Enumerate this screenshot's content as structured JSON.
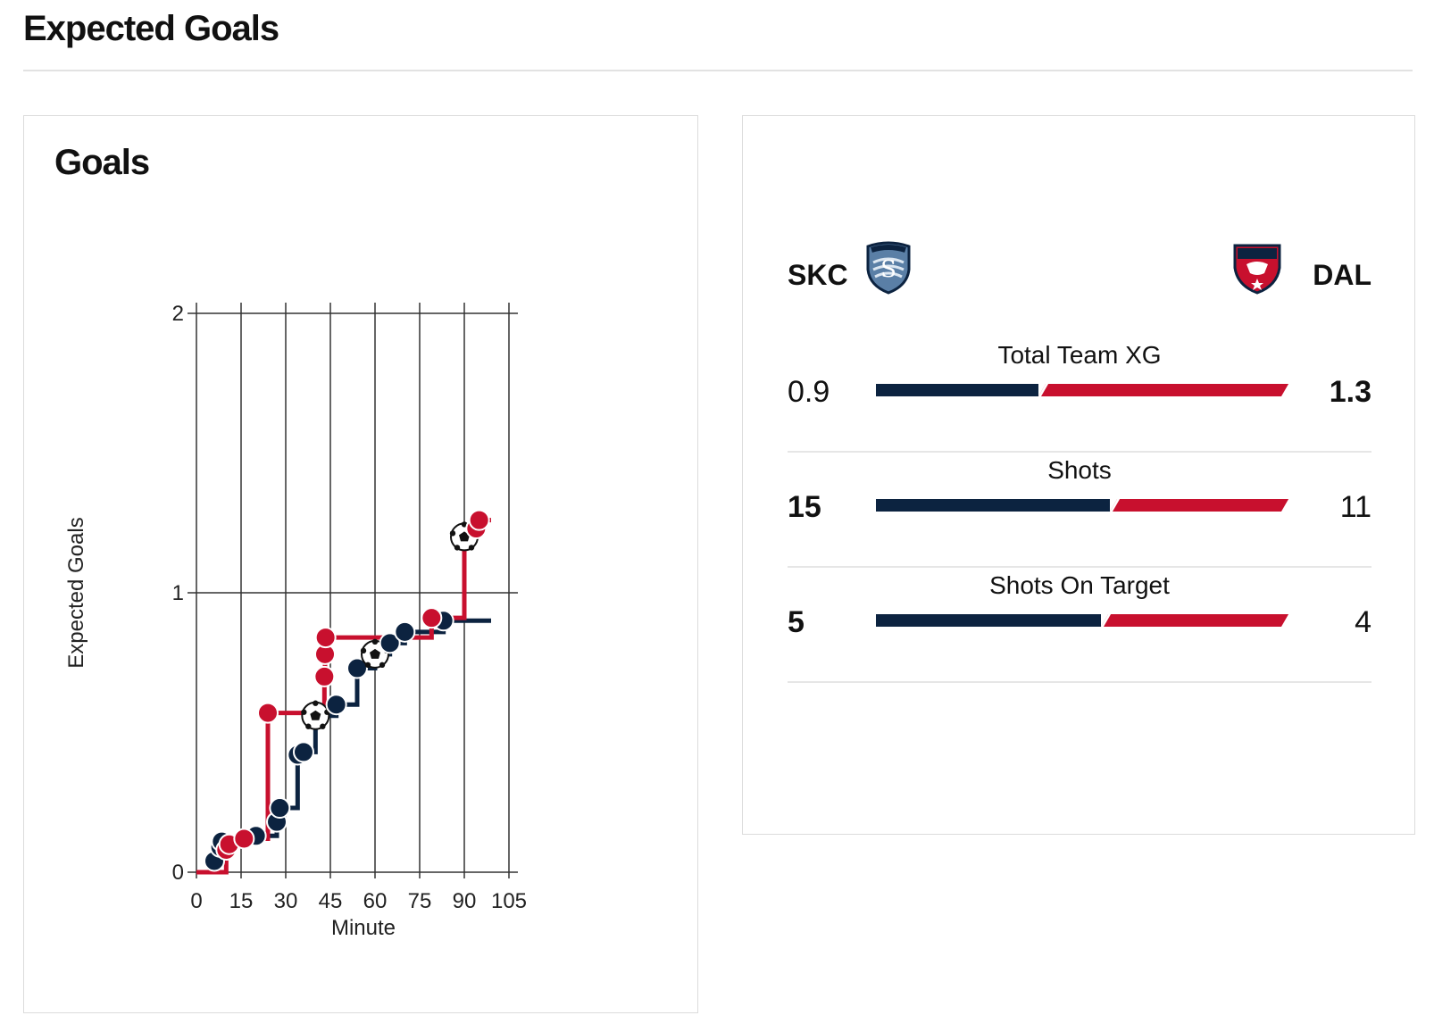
{
  "header": {
    "title": "Expected Goals"
  },
  "chart_card": {
    "title": "Goals"
  },
  "chart_data": {
    "type": "line",
    "title": "Goals",
    "xlabel": "Minute",
    "ylabel": "Expected Goals",
    "xlim": [
      0,
      105
    ],
    "ylim": [
      0,
      2
    ],
    "x_ticks": [
      0,
      15,
      30,
      45,
      60,
      75,
      90,
      105
    ],
    "y_ticks": [
      0,
      1,
      2
    ],
    "series": [
      {
        "name": "SKC",
        "color": "#0c2340",
        "points": [
          {
            "x": 6,
            "y": 0.04
          },
          {
            "x": 8,
            "y": 0.09
          },
          {
            "x": 8.5,
            "y": 0.11
          },
          {
            "x": 20,
            "y": 0.13
          },
          {
            "x": 27,
            "y": 0.18
          },
          {
            "x": 28,
            "y": 0.23
          },
          {
            "x": 34,
            "y": 0.42
          },
          {
            "x": 36,
            "y": 0.43
          },
          {
            "x": 40,
            "y": 0.56,
            "goal": true
          },
          {
            "x": 47,
            "y": 0.6
          },
          {
            "x": 54,
            "y": 0.73
          },
          {
            "x": 60,
            "y": 0.78,
            "goal": true
          },
          {
            "x": 65,
            "y": 0.82
          },
          {
            "x": 70,
            "y": 0.86
          },
          {
            "x": 83,
            "y": 0.9
          }
        ],
        "end": {
          "x": 99,
          "y": 0.9
        }
      },
      {
        "name": "DAL",
        "color": "#c8102e",
        "points": [
          {
            "x": 10,
            "y": 0.08
          },
          {
            "x": 11,
            "y": 0.1
          },
          {
            "x": 16,
            "y": 0.12
          },
          {
            "x": 24,
            "y": 0.57
          },
          {
            "x": 43,
            "y": 0.7
          },
          {
            "x": 43.2,
            "y": 0.78
          },
          {
            "x": 43.4,
            "y": 0.84
          },
          {
            "x": 79,
            "y": 0.91
          },
          {
            "x": 90,
            "y": 1.2,
            "goal": true
          },
          {
            "x": 94,
            "y": 1.23
          },
          {
            "x": 95,
            "y": 1.26
          }
        ],
        "end": {
          "x": 99,
          "y": 1.26
        }
      }
    ]
  },
  "comparison": {
    "home": {
      "abbr": "SKC",
      "logo_text": "SPORTING",
      "logo_icon": "skc-crest-icon",
      "color": "#0c2340"
    },
    "away": {
      "abbr": "DAL",
      "logo_text": "FC DALLAS",
      "logo_icon": "fc-dallas-crest-icon",
      "color": "#c8102e"
    },
    "stats": [
      {
        "label": "Total Team XG",
        "home": "0.9",
        "away": "1.3",
        "home_share": 0.4,
        "bold": "away"
      },
      {
        "label": "Shots",
        "home": "15",
        "away": "11",
        "home_share": 0.577,
        "bold": "home"
      },
      {
        "label": "Shots On Target",
        "home": "5",
        "away": "4",
        "home_share": 0.556,
        "bold": "home"
      }
    ]
  }
}
